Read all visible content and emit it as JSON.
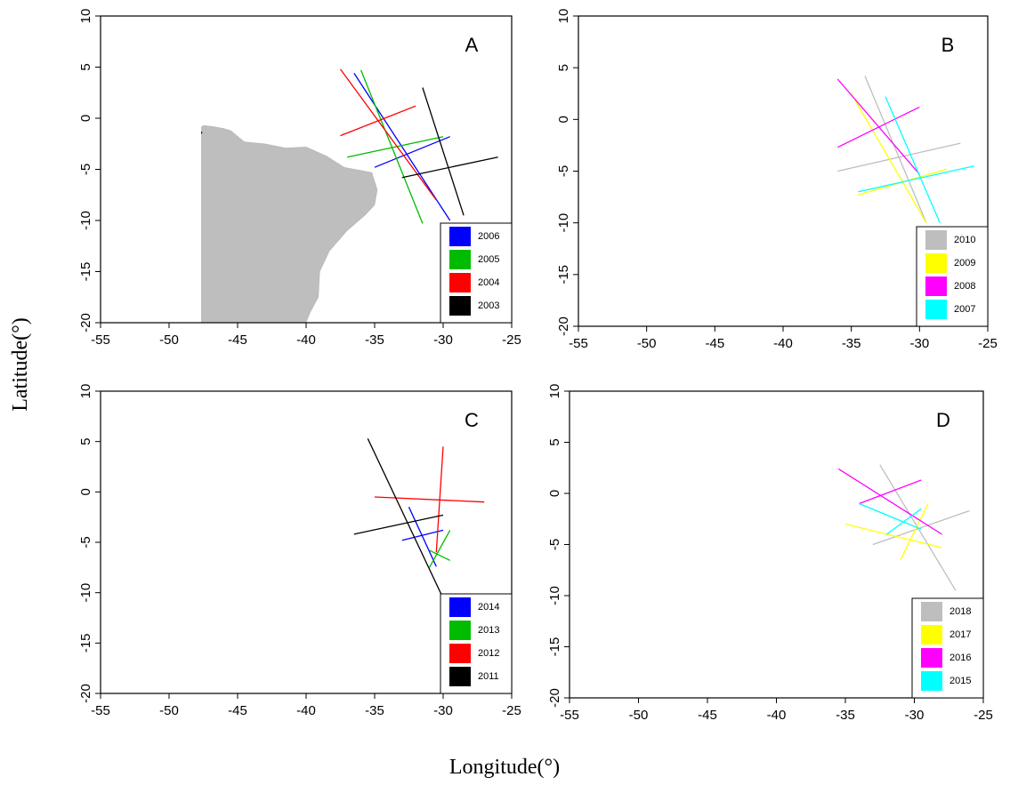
{
  "xlabel": "Longitude(°)",
  "ylabel": "Latitude(°)",
  "chart_data": [
    {
      "type": "line",
      "label": "A",
      "xlim": [
        -55,
        -25
      ],
      "ylim": [
        -20,
        10
      ],
      "xticks": [
        -55,
        -50,
        -45,
        -40,
        -35,
        -30,
        -25
      ],
      "yticks": [
        -20,
        -15,
        -10,
        -5,
        0,
        5,
        10
      ],
      "legend": "bottom-right",
      "series": [
        {
          "name": "2006",
          "color": "#0000ff",
          "x": [
            -36.5,
            -29.5,
            null,
            -35,
            -29.5
          ],
          "values": [
            4.4,
            -10,
            null,
            -4.8,
            -1.8
          ]
        },
        {
          "name": "2005",
          "color": "#00bb00",
          "x": [
            -36,
            -31.5,
            null,
            -37,
            -30
          ],
          "values": [
            4.7,
            -10.3,
            null,
            -3.8,
            -1.8
          ]
        },
        {
          "name": "2004",
          "color": "#ff0000",
          "x": [
            -37.5,
            -30.5,
            null,
            -37.5,
            -32
          ],
          "values": [
            4.8,
            -8,
            null,
            -1.7,
            1.2
          ]
        },
        {
          "name": "2003",
          "color": "#000000",
          "x": [
            -31.5,
            -28.5,
            null,
            -33,
            -26
          ],
          "values": [
            3,
            -9.5,
            null,
            -5.8,
            -3.8
          ]
        }
      ]
    },
    {
      "type": "line",
      "label": "B",
      "xlim": [
        -55,
        -25
      ],
      "ylim": [
        -20,
        10
      ],
      "xticks": [
        -55,
        -50,
        -45,
        -40,
        -35,
        -30,
        -25
      ],
      "yticks": [
        -20,
        -15,
        -10,
        -5,
        0,
        5,
        10
      ],
      "legend": "bottom-right",
      "series": [
        {
          "name": "2010",
          "color": "#bebebe",
          "x": [
            -34,
            -29.5,
            null,
            -36,
            -27
          ],
          "values": [
            4.2,
            -10,
            null,
            -5,
            -2.3
          ]
        },
        {
          "name": "2009",
          "color": "#ffff00",
          "x": [
            -35,
            -29.5,
            null,
            -34.5,
            -28
          ],
          "values": [
            2.5,
            -10,
            null,
            -7.3,
            -4.8
          ]
        },
        {
          "name": "2008",
          "color": "#ff00ff",
          "x": [
            -36,
            -30,
            null,
            -36,
            -30
          ],
          "values": [
            3.9,
            -5.3,
            null,
            -2.7,
            1.2
          ]
        },
        {
          "name": "2007",
          "color": "#00ffff",
          "x": [
            -32.5,
            -28.5,
            null,
            -34.5,
            -26
          ],
          "values": [
            2.2,
            -10,
            null,
            -7,
            -4.5
          ]
        }
      ]
    },
    {
      "type": "line",
      "label": "C",
      "xlim": [
        -55,
        -25
      ],
      "ylim": [
        -20,
        10
      ],
      "xticks": [
        -55,
        -50,
        -45,
        -40,
        -35,
        -30,
        -25
      ],
      "yticks": [
        -20,
        -15,
        -10,
        -5,
        0,
        5,
        10
      ],
      "legend": "bottom-right",
      "series": [
        {
          "name": "2014",
          "color": "#0000ff",
          "x": [
            -32.5,
            -30.5,
            null,
            -33,
            -30
          ],
          "values": [
            -1.5,
            -7.4,
            null,
            -4.8,
            -3.8
          ]
        },
        {
          "name": "2013",
          "color": "#00bb00",
          "x": [
            -31,
            -29.5,
            null,
            -31,
            -29.5
          ],
          "values": [
            -7.5,
            -3.8,
            null,
            -5.8,
            -6.8
          ]
        },
        {
          "name": "2012",
          "color": "#ff0000",
          "x": [
            -30,
            -30.5,
            null,
            -35,
            -27
          ],
          "values": [
            4.5,
            -6,
            null,
            -0.5,
            -1
          ]
        },
        {
          "name": "2011",
          "color": "#000000",
          "x": [
            -35.5,
            -29.5,
            null,
            -36.5,
            -30
          ],
          "values": [
            5.3,
            -12,
            null,
            -4.2,
            -2.3
          ]
        }
      ]
    },
    {
      "type": "line",
      "label": "D",
      "xlim": [
        -55,
        -25
      ],
      "ylim": [
        -20,
        10
      ],
      "xticks": [
        -55,
        -50,
        -45,
        -40,
        -35,
        -30,
        -25
      ],
      "yticks": [
        -20,
        -15,
        -10,
        -5,
        0,
        5,
        10
      ],
      "legend": "bottom-right",
      "series": [
        {
          "name": "2018",
          "color": "#bebebe",
          "x": [
            -32.5,
            -27,
            null,
            -33,
            -26
          ],
          "values": [
            2.8,
            -9.5,
            null,
            -5,
            -1.7
          ]
        },
        {
          "name": "2017",
          "color": "#ffff00",
          "x": [
            -35,
            -28,
            null,
            -31,
            -29
          ],
          "values": [
            -3,
            -5.3,
            null,
            -6.5,
            -1
          ]
        },
        {
          "name": "2016",
          "color": "#ff00ff",
          "x": [
            -35.5,
            -28,
            null,
            -34,
            -29.5
          ],
          "values": [
            2.4,
            -4,
            null,
            -1,
            1.3
          ]
        },
        {
          "name": "2015",
          "color": "#00ffff",
          "x": [
            -34,
            -29.5,
            null,
            -32,
            -29.5
          ],
          "values": [
            -1,
            -3.5,
            null,
            -4,
            -1.5
          ]
        }
      ]
    }
  ]
}
